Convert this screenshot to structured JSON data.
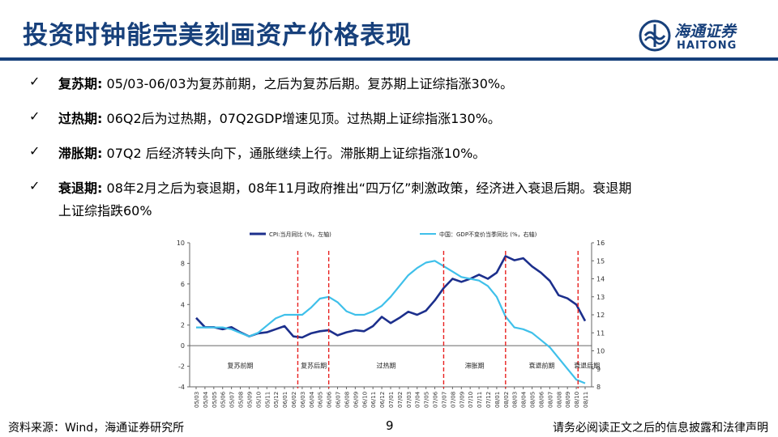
{
  "title": "投资时钟能完美刻画资产价格表现",
  "logo": {
    "cn": "海通证券",
    "en": "HAITONG"
  },
  "bullets": [
    {
      "check": "✓",
      "label": "复苏期",
      "sep": ":",
      "text": "05/03-06/03为复苏前期，之后为复苏后期。复苏期上证综指涨30%。"
    },
    {
      "check": "✓",
      "label": "过热期",
      "sep": ":",
      "text": "06Q2后为过热期，07Q2GDP增速见顶。过热期上证综指涨130%。"
    },
    {
      "check": "✓",
      "label": "滞胀期",
      "sep": ":",
      "text": "07Q2 后经济转头向下，通胀继续上行。滞胀期上证综指涨10%。"
    },
    {
      "check": "✓",
      "label": "衰退期",
      "sep": ":",
      "text": "08年2月之后为衰退期，08年11月政府推出“四万亿”刺激政策，经济进入衰退后期。衰退期",
      "text2": "上证综指跌60%"
    }
  ],
  "chart_data": {
    "type": "line",
    "title": "",
    "legend": [
      "CPI:当月同比 (%，左轴)",
      "中国：GDP不变价当季同比 (%，右轴)"
    ],
    "colors": {
      "cpi": "#1c2f8c",
      "gdp": "#3fc0ea",
      "divider": "#e8201f"
    },
    "x": [
      "05/03",
      "05/04",
      "05/05",
      "05/06",
      "05/07",
      "05/08",
      "05/09",
      "05/10",
      "05/11",
      "05/12",
      "06/01",
      "06/02",
      "06/03",
      "06/04",
      "06/05",
      "06/06",
      "06/07",
      "06/08",
      "06/09",
      "06/10",
      "06/11",
      "06/12",
      "07/01",
      "07/02",
      "07/03",
      "07/04",
      "07/05",
      "07/06",
      "07/07",
      "07/08",
      "07/09",
      "07/10",
      "07/11",
      "07/12",
      "08/01",
      "08/02",
      "08/03",
      "08/04",
      "08/05",
      "08/06",
      "08/07",
      "08/08",
      "08/09",
      "08/10",
      "08/11"
    ],
    "series": [
      {
        "name": "CPI:当月同比 (%，左轴)",
        "axis": "left",
        "values": [
          2.7,
          1.8,
          1.8,
          1.6,
          1.8,
          1.3,
          0.9,
          1.2,
          1.3,
          1.6,
          1.9,
          0.9,
          0.8,
          1.2,
          1.4,
          1.5,
          1.0,
          1.3,
          1.5,
          1.4,
          1.9,
          2.8,
          2.2,
          2.7,
          3.3,
          3.0,
          3.4,
          4.4,
          5.6,
          6.5,
          6.2,
          6.5,
          6.9,
          6.5,
          7.1,
          8.7,
          8.3,
          8.5,
          7.7,
          7.1,
          6.3,
          4.9,
          4.6,
          4.0,
          2.4
        ]
      },
      {
        "name": "中国：GDP不变价当季同比 (%，右轴)",
        "axis": "right",
        "values": [
          11.3,
          11.3,
          11.3,
          11.3,
          11.2,
          11.0,
          10.8,
          11.0,
          11.4,
          11.8,
          12.0,
          12.0,
          12.0,
          12.4,
          12.9,
          13.0,
          12.7,
          12.2,
          12.0,
          12.0,
          12.2,
          12.5,
          13.0,
          13.6,
          14.2,
          14.6,
          14.9,
          15.0,
          14.7,
          14.4,
          14.1,
          14.0,
          13.9,
          13.6,
          13.0,
          11.9,
          11.3,
          11.2,
          11.0,
          10.6,
          10.2,
          9.6,
          9.0,
          8.4,
          8.2
        ]
      }
    ],
    "left_axis": {
      "min": -4,
      "max": 10,
      "ticks": [
        "10",
        "8",
        "6",
        "4",
        "2",
        "0",
        "-2",
        "-4"
      ]
    },
    "right_axis": {
      "min": 8,
      "max": 16,
      "ticks": [
        "16",
        "15",
        "14",
        "13",
        "12",
        "11",
        "10",
        "9",
        "8"
      ]
    },
    "dividers": [
      "06/03",
      "06/06",
      "07/06",
      "08/02",
      "08/11"
    ],
    "divider_indices": [
      11.5,
      15,
      28,
      35,
      43.2
    ],
    "phase_labels": [
      "复苏前期",
      "复苏后期",
      "过热期",
      "滞胀期",
      "衰退前期",
      "衰退后期"
    ],
    "phase_positions": [
      5,
      13.3,
      21.5,
      31.5,
      39.1,
      44.2
    ]
  },
  "footer": {
    "source": "资料来源：Wind，海通证券研究所",
    "page": "9",
    "disclaimer": "请务必阅读正文之后的信息披露和法律声明"
  }
}
